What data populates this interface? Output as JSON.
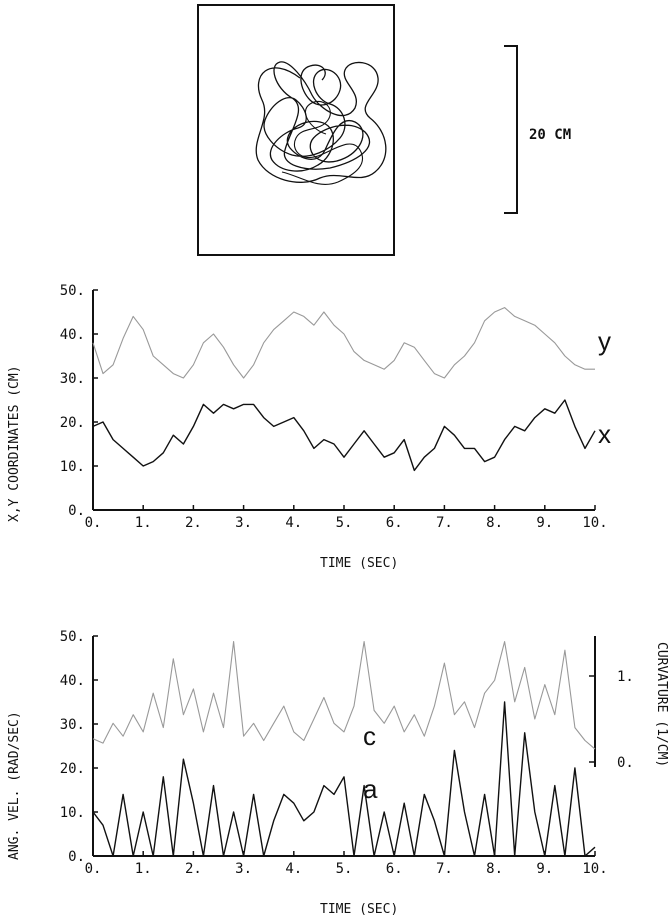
{
  "scale_bar": {
    "label": "20 CM"
  },
  "chart_data": [
    {
      "type": "line",
      "ylabel": "X,Y COORDINATES (CM)",
      "xlabel": "TIME (SEC)",
      "xlim": [
        0,
        10
      ],
      "ylim": [
        0,
        50
      ],
      "x_tick_labels": [
        "0.",
        "1.",
        "2.",
        "3.",
        "4.",
        "5.",
        "6.",
        "7.",
        "8.",
        "9.",
        "10."
      ],
      "y_tick_labels": [
        "0.",
        "10.",
        "20.",
        "30.",
        "40.",
        "50."
      ],
      "series": [
        {
          "name": "y",
          "color": "#999999",
          "x": [
            0,
            0.2,
            0.4,
            0.6,
            0.8,
            1.0,
            1.2,
            1.4,
            1.6,
            1.8,
            2.0,
            2.2,
            2.4,
            2.6,
            2.8,
            3.0,
            3.2,
            3.4,
            3.6,
            3.8,
            4.0,
            4.2,
            4.4,
            4.6,
            4.8,
            5.0,
            5.2,
            5.4,
            5.6,
            5.8,
            6.0,
            6.2,
            6.4,
            6.6,
            6.8,
            7.0,
            7.2,
            7.4,
            7.6,
            7.8,
            8.0,
            8.2,
            8.4,
            8.6,
            8.8,
            9.0,
            9.2,
            9.4,
            9.6,
            9.8,
            10.0
          ],
          "y": [
            38,
            31,
            33,
            39,
            44,
            41,
            35,
            33,
            31,
            30,
            33,
            38,
            40,
            37,
            33,
            30,
            33,
            38,
            41,
            43,
            45,
            44,
            42,
            45,
            42,
            40,
            36,
            34,
            33,
            32,
            34,
            38,
            37,
            34,
            31,
            30,
            33,
            35,
            38,
            43,
            45,
            46,
            44,
            43,
            42,
            40,
            38,
            35,
            33,
            32,
            32
          ]
        },
        {
          "name": "x",
          "color": "#111111",
          "x": [
            0,
            0.2,
            0.4,
            0.6,
            0.8,
            1.0,
            1.2,
            1.4,
            1.6,
            1.8,
            2.0,
            2.2,
            2.4,
            2.6,
            2.8,
            3.0,
            3.2,
            3.4,
            3.6,
            3.8,
            4.0,
            4.2,
            4.4,
            4.6,
            4.8,
            5.0,
            5.2,
            5.4,
            5.6,
            5.8,
            6.0,
            6.2,
            6.4,
            6.6,
            6.8,
            7.0,
            7.2,
            7.4,
            7.6,
            7.8,
            8.0,
            8.2,
            8.4,
            8.6,
            8.8,
            9.0,
            9.2,
            9.4,
            9.6,
            9.8,
            10.0
          ],
          "y": [
            19,
            20,
            16,
            14,
            12,
            10,
            11,
            13,
            17,
            15,
            19,
            24,
            22,
            24,
            23,
            24,
            24,
            21,
            19,
            20,
            21,
            18,
            14,
            16,
            15,
            12,
            15,
            18,
            15,
            12,
            13,
            16,
            9,
            12,
            14,
            19,
            17,
            14,
            14,
            11,
            12,
            16,
            19,
            18,
            21,
            23,
            22,
            25,
            19,
            14,
            18
          ]
        }
      ]
    },
    {
      "type": "line",
      "ylabel": "ANG. VEL. (RAD/SEC)",
      "y2label": "CURVATURE (1/CM)",
      "xlabel": "TIME (SEC)",
      "xlim": [
        0,
        10
      ],
      "ylim": [
        0,
        50
      ],
      "y2lim": [
        0,
        1
      ],
      "x_tick_labels": [
        "0.",
        "1.",
        "2.",
        "3.",
        "4.",
        "5.",
        "6.",
        "7.",
        "8.",
        "9.",
        "10."
      ],
      "y_tick_labels": [
        "0.",
        "10.",
        "20.",
        "30.",
        "40.",
        "50."
      ],
      "y2_tick_labels": [
        "0.",
        "1."
      ],
      "series": [
        {
          "name": "c",
          "color": "#999999",
          "x": [
            0,
            0.2,
            0.4,
            0.6,
            0.8,
            1.0,
            1.2,
            1.4,
            1.6,
            1.8,
            2.0,
            2.2,
            2.4,
            2.6,
            2.8,
            3.0,
            3.2,
            3.4,
            3.6,
            3.8,
            4.0,
            4.2,
            4.4,
            4.6,
            4.8,
            5.0,
            5.2,
            5.4,
            5.6,
            5.8,
            6.0,
            6.2,
            6.4,
            6.6,
            6.8,
            7.0,
            7.2,
            7.4,
            7.6,
            7.8,
            8.0,
            8.2,
            8.4,
            8.6,
            8.8,
            9.0,
            9.2,
            9.4,
            9.6,
            9.8,
            10.0
          ],
          "y": [
            0.27,
            0.22,
            0.45,
            0.3,
            0.55,
            0.35,
            0.8,
            0.4,
            1.2,
            0.55,
            0.85,
            0.35,
            0.8,
            0.4,
            1.4,
            0.3,
            0.45,
            0.25,
            0.45,
            0.65,
            0.35,
            0.25,
            0.5,
            0.75,
            0.45,
            0.35,
            0.65,
            1.4,
            0.6,
            0.45,
            0.65,
            0.35,
            0.55,
            0.3,
            0.65,
            1.15,
            0.55,
            0.7,
            0.4,
            0.8,
            0.95,
            1.4,
            0.7,
            1.1,
            0.5,
            0.9,
            0.55,
            1.3,
            0.4,
            0.25,
            0.15
          ]
        },
        {
          "name": "a",
          "color": "#111111",
          "x": [
            0,
            0.2,
            0.4,
            0.6,
            0.8,
            1.0,
            1.2,
            1.4,
            1.6,
            1.8,
            2.0,
            2.2,
            2.4,
            2.6,
            2.8,
            3.0,
            3.2,
            3.4,
            3.6,
            3.8,
            4.0,
            4.2,
            4.4,
            4.6,
            4.8,
            5.0,
            5.2,
            5.4,
            5.6,
            5.8,
            6.0,
            6.2,
            6.4,
            6.6,
            6.8,
            7.0,
            7.2,
            7.4,
            7.6,
            7.8,
            8.0,
            8.2,
            8.4,
            8.6,
            8.8,
            9.0,
            9.2,
            9.4,
            9.6,
            9.8,
            10.0
          ],
          "y": [
            10,
            7,
            0,
            14,
            0,
            10,
            0,
            18,
            0,
            22,
            12,
            0,
            16,
            0,
            10,
            0,
            14,
            0,
            8,
            14,
            12,
            8,
            10,
            16,
            14,
            18,
            0,
            16,
            0,
            10,
            0,
            12,
            0,
            14,
            8,
            0,
            24,
            10,
            0,
            14,
            0,
            35,
            0,
            28,
            10,
            0,
            16,
            0,
            20,
            0,
            2
          ]
        }
      ]
    }
  ]
}
